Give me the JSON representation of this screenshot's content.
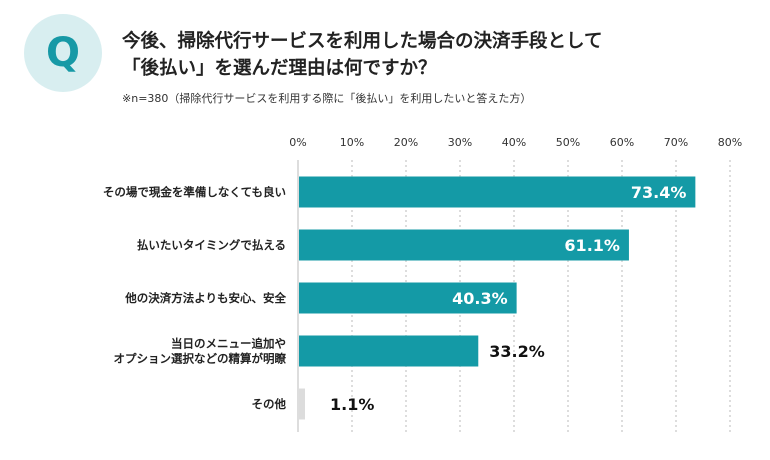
{
  "header": {
    "badge": "Q",
    "title_line1": "今後、掃除代行サービスを利用した場合の決済手段として",
    "title_line2": "「後払い」を選んだ理由は何ですか？",
    "note": "※n=380（掃除代行サービスを利用する際に「後払い」を利用したいと答えた方）"
  },
  "colors": {
    "bar": "#149aa6",
    "bar_small": "#dcdcdc",
    "grid": "#bbbbbb"
  },
  "chart_data": {
    "type": "bar",
    "orientation": "horizontal",
    "title": "",
    "xlabel": "",
    "ylabel": "",
    "xlim": [
      0,
      80
    ],
    "tick_step": 10,
    "ticks": [
      "0%",
      "10%",
      "20%",
      "30%",
      "40%",
      "50%",
      "60%",
      "70%",
      "80%"
    ],
    "categories": [
      [
        "その場で現金を準備しなくても良い"
      ],
      [
        "払いたいタイミングで払える"
      ],
      [
        "他の決済方法よりも安心、安全"
      ],
      [
        "当日のメニュー追加や",
        "オプション選択などの精算が明瞭"
      ],
      [
        "その他"
      ]
    ],
    "values": [
      73.4,
      61.1,
      40.3,
      33.2,
      1.1
    ],
    "labels": [
      "73.4%",
      "61.1%",
      "40.3%",
      "33.2%",
      "1.1%"
    ],
    "label_inside": [
      true,
      true,
      true,
      false,
      false
    ]
  }
}
